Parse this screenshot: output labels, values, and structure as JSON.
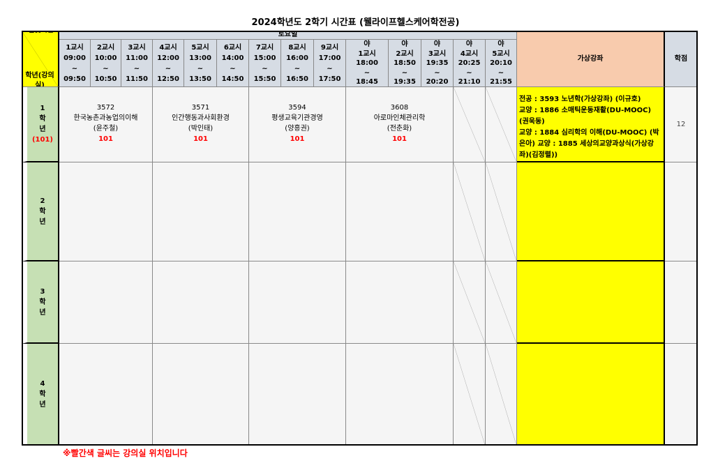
{
  "title": "2024학년도 2학기 시간표 (웰라이프헬스케어학전공)",
  "corner": {
    "top": "요일및시간",
    "bottom": "학년(강의실)"
  },
  "day": "토요일",
  "periods": [
    {
      "name": "1교시",
      "start": "09:00",
      "sep": "~",
      "end": "09:50"
    },
    {
      "name": "2교시",
      "start": "10:00",
      "sep": "~",
      "end": "10:50"
    },
    {
      "name": "3교시",
      "start": "11:00",
      "sep": "~",
      "end": "11:50"
    },
    {
      "name": "4교시",
      "start": "12:00",
      "sep": "~",
      "end": "12:50"
    },
    {
      "name": "5교시",
      "start": "13:00",
      "sep": "~",
      "end": "13:50"
    },
    {
      "name": "6교시",
      "start": "14:00",
      "sep": "~",
      "end": "14:50"
    },
    {
      "name": "7교시",
      "start": "15:00",
      "sep": "~",
      "end": "15:50"
    },
    {
      "name": "8교시",
      "start": "16:00",
      "sep": "~",
      "end": "16:50"
    },
    {
      "name": "9교시",
      "start": "17:00",
      "sep": "~",
      "end": "17:50"
    }
  ],
  "night_periods": [
    {
      "pre": "야",
      "name": "1교시",
      "start": "18:00",
      "sep": "~",
      "end": "18:45"
    },
    {
      "pre": "야",
      "name": "2교시",
      "start": "18:50",
      "sep": "~",
      "end": "19:35"
    },
    {
      "pre": "야",
      "name": "3교시",
      "start": "19:35",
      "sep": "~",
      "end": "20:20"
    },
    {
      "pre": "야",
      "name": "4교시",
      "start": "20:25",
      "sep": "~",
      "end": "21:10"
    },
    {
      "pre": "야",
      "name": "5교시",
      "start": "20:10",
      "sep": "~",
      "end": "21:55"
    }
  ],
  "virtual_header": "가상강좌",
  "credit_header": "학점",
  "years": [
    {
      "num": "1",
      "a": "학",
      "b": "년",
      "room": "(101)",
      "credits": "12",
      "courses": [
        {
          "code": "3572",
          "name": "한국농촌과농업의이해",
          "prof": "(윤주철)",
          "room": "101"
        },
        {
          "code": "3571",
          "name": "인간행동과사회환경",
          "prof": "(박인태)",
          "room": "101"
        },
        {
          "code": "3594",
          "name": "평생교육기관경영",
          "prof": "(양흥권)",
          "room": "101"
        },
        {
          "code": "3608",
          "name": "아로마인체관리학",
          "prof": "(전춘화)",
          "room": "101"
        }
      ],
      "virtual": "전공 : 3593 노년학(가상강좌) (이규호)\n교양 : 1886 소매틱운동재활(DU-MOOC) (권욱동)\n교양 : 1884 심리학의 이해(DU-MOOC) (박은아) 교양 : 1885 세상의교양과상식(가상강좌)(김정렬))"
    },
    {
      "num": "2",
      "a": "학",
      "b": "년"
    },
    {
      "num": "3",
      "a": "학",
      "b": "년"
    },
    {
      "num": "4",
      "a": "학",
      "b": "년"
    }
  ],
  "note": "※빨간색 글씨는 강의실 위치입니다",
  "colors": {
    "header": "#d6dce4",
    "year": "#c6e0b4",
    "corner": "#ffff00",
    "virtual": "#ffff00",
    "virtual_header": "#f8cbad",
    "room_text": "#ff0000"
  }
}
